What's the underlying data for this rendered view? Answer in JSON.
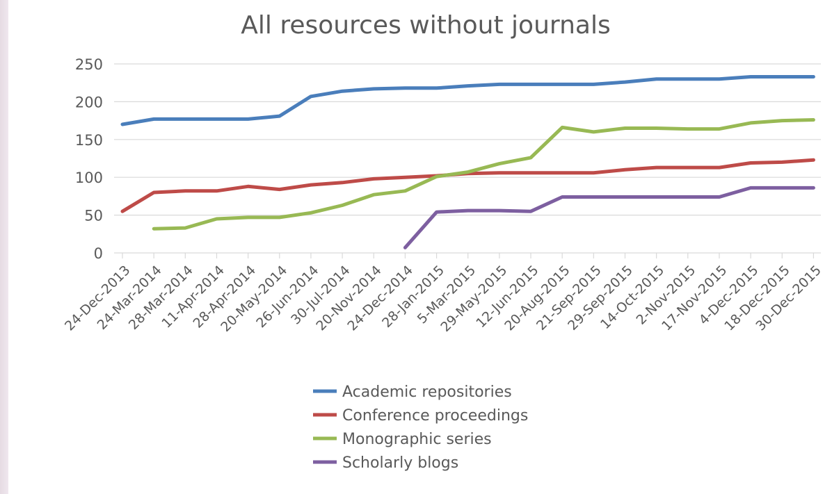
{
  "chart_data": {
    "type": "line",
    "title": "All resources without journals",
    "xlabel": "",
    "ylabel": "",
    "ylim": [
      0,
      250
    ],
    "yticks": [
      0,
      50,
      100,
      150,
      200,
      250
    ],
    "grid": true,
    "legend_position": "bottom",
    "categories": [
      "24-Dec-2013",
      "24-Mar-2014",
      "28-Mar-2014",
      "11-Apr-2014",
      "28-Apr-2014",
      "20-May-2014",
      "26-Jun-2014",
      "30-Jul-2014",
      "20-Nov-2014",
      "24-Dec-2014",
      "28-Jan-2015",
      "5-Mar-2015",
      "29-May-2015",
      "12-Jun-2015",
      "20-Aug-2015",
      "21-Sep-2015",
      "29-Sep-2015",
      "14-Oct-2015",
      "2-Nov-2015",
      "17-Nov-2015",
      "4-Dec-2015",
      "18-Dec-2015",
      "30-Dec-2015"
    ],
    "series": [
      {
        "name": "Academic repositories",
        "color": "#4a7ebb",
        "values": [
          170,
          177,
          177,
          177,
          177,
          181,
          207,
          214,
          217,
          218,
          218,
          221,
          223,
          223,
          223,
          223,
          226,
          230,
          230,
          230,
          233,
          233,
          233
        ]
      },
      {
        "name": "Conference proceedings",
        "color": "#be4b48",
        "values": [
          55,
          80,
          82,
          82,
          88,
          84,
          90,
          93,
          98,
          100,
          102,
          105,
          106,
          106,
          106,
          106,
          110,
          113,
          113,
          113,
          119,
          120,
          123
        ]
      },
      {
        "name": "Monographic series",
        "color": "#98b954",
        "values": [
          null,
          32,
          33,
          45,
          47,
          47,
          53,
          63,
          77,
          82,
          101,
          107,
          118,
          126,
          166,
          160,
          165,
          165,
          164,
          164,
          172,
          175,
          176
        ]
      },
      {
        "name": "Scholarly blogs",
        "color": "#7d5fa0",
        "values": [
          null,
          null,
          null,
          null,
          null,
          null,
          null,
          null,
          null,
          7,
          54,
          56,
          56,
          55,
          74,
          74,
          74,
          74,
          74,
          74,
          86,
          86,
          86
        ]
      }
    ]
  }
}
